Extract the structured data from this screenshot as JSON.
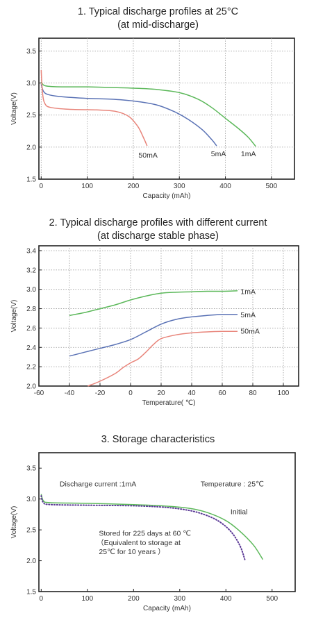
{
  "chart_data": [
    {
      "type": "line",
      "title": "1. Typical discharge profiles at 25°C",
      "subtitle": "(at mid-discharge)",
      "xlabel": "Capacity (mAh)",
      "ylabel": "Voltage(V)",
      "xlim": [
        -5,
        550
      ],
      "ylim": [
        1.5,
        3.7
      ],
      "xticks": [
        0,
        100,
        200,
        300,
        400,
        500
      ],
      "yticks": [
        1.5,
        2.0,
        2.5,
        3.0,
        3.5
      ],
      "xtick_labels": [
        "0",
        "100",
        "200",
        "300",
        "400",
        "500"
      ],
      "ytick_labels": [
        "1.5",
        "2.0",
        "2.5",
        "3.0",
        "3.5"
      ],
      "grid": true,
      "series": [
        {
          "name": "1mA",
          "color": "#5cb85a",
          "label_at": [
            450,
            1.9
          ],
          "points": [
            [
              0,
              3.02
            ],
            [
              5,
              2.97
            ],
            [
              15,
              2.95
            ],
            [
              50,
              2.94
            ],
            [
              100,
              2.94
            ],
            [
              150,
              2.93
            ],
            [
              200,
              2.92
            ],
            [
              250,
              2.9
            ],
            [
              300,
              2.85
            ],
            [
              340,
              2.75
            ],
            [
              370,
              2.62
            ],
            [
              400,
              2.45
            ],
            [
              430,
              2.28
            ],
            [
              450,
              2.15
            ],
            [
              466,
              2.01
            ]
          ]
        },
        {
          "name": "5mA",
          "color": "#5a72b5",
          "label_at": [
            385,
            1.9
          ],
          "points": [
            [
              0,
              2.98
            ],
            [
              5,
              2.87
            ],
            [
              15,
              2.82
            ],
            [
              40,
              2.79
            ],
            [
              100,
              2.76
            ],
            [
              150,
              2.75
            ],
            [
              200,
              2.72
            ],
            [
              250,
              2.66
            ],
            [
              290,
              2.55
            ],
            [
              320,
              2.43
            ],
            [
              350,
              2.27
            ],
            [
              370,
              2.12
            ],
            [
              381,
              2.02
            ]
          ]
        },
        {
          "name": "50mA",
          "color": "#e8847a",
          "label_at": [
            232,
            1.88
          ],
          "points": [
            [
              0,
              3.2
            ],
            [
              3,
              2.84
            ],
            [
              8,
              2.68
            ],
            [
              20,
              2.62
            ],
            [
              60,
              2.59
            ],
            [
              120,
              2.58
            ],
            [
              160,
              2.56
            ],
            [
              190,
              2.48
            ],
            [
              210,
              2.32
            ],
            [
              222,
              2.15
            ],
            [
              230,
              2.02
            ]
          ]
        }
      ]
    },
    {
      "type": "line",
      "title": "2. Typical discharge profiles with different current",
      "subtitle": "(at discharge stable phase)",
      "xlabel": "Temperature( ℃)",
      "ylabel": "Voltage(V)",
      "xlim": [
        -60,
        110
      ],
      "ylim": [
        2.0,
        3.45
      ],
      "xticks": [
        -60,
        -40,
        -20,
        0,
        20,
        40,
        60,
        80,
        100
      ],
      "yticks": [
        2.0,
        2.2,
        2.4,
        2.6,
        2.8,
        3.0,
        3.2,
        3.4
      ],
      "xtick_labels": [
        "-60",
        "-40",
        "-20",
        "0",
        "20",
        "40",
        "60",
        "80",
        "100"
      ],
      "ytick_labels": [
        "2.0",
        "2.2",
        "2.4",
        "2.6",
        "2.8",
        "3.0",
        "3.2",
        "3.4"
      ],
      "grid": true,
      "series": [
        {
          "name": "1mA",
          "color": "#5cb85a",
          "label_at": [
            72,
            2.98
          ],
          "points": [
            [
              -40,
              2.73
            ],
            [
              -30,
              2.76
            ],
            [
              -20,
              2.8
            ],
            [
              -10,
              2.84
            ],
            [
              0,
              2.89
            ],
            [
              10,
              2.93
            ],
            [
              20,
              2.96
            ],
            [
              30,
              2.97
            ],
            [
              40,
              2.975
            ],
            [
              50,
              2.98
            ],
            [
              60,
              2.98
            ],
            [
              70,
              2.985
            ]
          ]
        },
        {
          "name": "5mA",
          "color": "#5a72b5",
          "label_at": [
            72,
            2.74
          ],
          "points": [
            [
              -40,
              2.31
            ],
            [
              -30,
              2.35
            ],
            [
              -20,
              2.39
            ],
            [
              -10,
              2.43
            ],
            [
              0,
              2.48
            ],
            [
              10,
              2.56
            ],
            [
              20,
              2.64
            ],
            [
              30,
              2.69
            ],
            [
              40,
              2.715
            ],
            [
              50,
              2.73
            ],
            [
              60,
              2.74
            ],
            [
              70,
              2.74
            ]
          ]
        },
        {
          "name": "50mA",
          "color": "#e8847a",
          "label_at": [
            72,
            2.57
          ],
          "points": [
            [
              -28,
              2.0
            ],
            [
              -20,
              2.05
            ],
            [
              -10,
              2.13
            ],
            [
              -5,
              2.19
            ],
            [
              0,
              2.24
            ],
            [
              5,
              2.28
            ],
            [
              10,
              2.35
            ],
            [
              15,
              2.43
            ],
            [
              20,
              2.49
            ],
            [
              30,
              2.53
            ],
            [
              40,
              2.55
            ],
            [
              50,
              2.56
            ],
            [
              60,
              2.565
            ],
            [
              70,
              2.565
            ]
          ]
        }
      ]
    },
    {
      "type": "line",
      "title": "3. Storage characteristics",
      "subtitle": "",
      "xlabel": "Capacity (mAh)",
      "ylabel": "Voltage(V)",
      "xlim": [
        -5,
        550
      ],
      "ylim": [
        1.5,
        3.75
      ],
      "xticks": [
        0,
        100,
        200,
        300,
        400,
        500
      ],
      "yticks": [
        1.5,
        2.0,
        2.5,
        3.0,
        3.5
      ],
      "xtick_labels": [
        "0",
        "100",
        "200",
        "300",
        "400",
        "500"
      ],
      "ytick_labels": [
        "1.5",
        "2.0",
        "2.5",
        "3.0",
        "3.5"
      ],
      "grid": false,
      "annotations": [
        {
          "text": "Discharge current :1mA",
          "at": [
            40,
            3.25
          ]
        },
        {
          "text": "Temperature : 25℃",
          "at": [
            345,
            3.25
          ]
        },
        {
          "text": "Initial",
          "at": [
            410,
            2.8
          ]
        },
        {
          "text": "Stored for 225 days at 60 ℃",
          "at": [
            125,
            2.45
          ]
        },
        {
          "text": "（Equivalent to storage at",
          "at": [
            120,
            2.3
          ]
        },
        {
          "text": "25℃ for 10 years ）",
          "at": [
            125,
            2.15
          ]
        }
      ],
      "series": [
        {
          "name": "Initial",
          "color": "#5cb85a",
          "style": "solid",
          "points": [
            [
              0,
              3.08
            ],
            [
              5,
              2.97
            ],
            [
              20,
              2.94
            ],
            [
              100,
              2.93
            ],
            [
              200,
              2.91
            ],
            [
              260,
              2.89
            ],
            [
              320,
              2.85
            ],
            [
              360,
              2.78
            ],
            [
              400,
              2.65
            ],
            [
              430,
              2.48
            ],
            [
              460,
              2.25
            ],
            [
              480,
              2.02
            ]
          ]
        },
        {
          "name": "Stored",
          "color": "#5b3a96",
          "style": "dotted",
          "points": [
            [
              0,
              3.05
            ],
            [
              5,
              2.94
            ],
            [
              20,
              2.91
            ],
            [
              100,
              2.9
            ],
            [
              200,
              2.89
            ],
            [
              260,
              2.87
            ],
            [
              300,
              2.84
            ],
            [
              340,
              2.78
            ],
            [
              380,
              2.66
            ],
            [
              410,
              2.48
            ],
            [
              430,
              2.25
            ],
            [
              441,
              2.02
            ]
          ]
        }
      ]
    }
  ]
}
